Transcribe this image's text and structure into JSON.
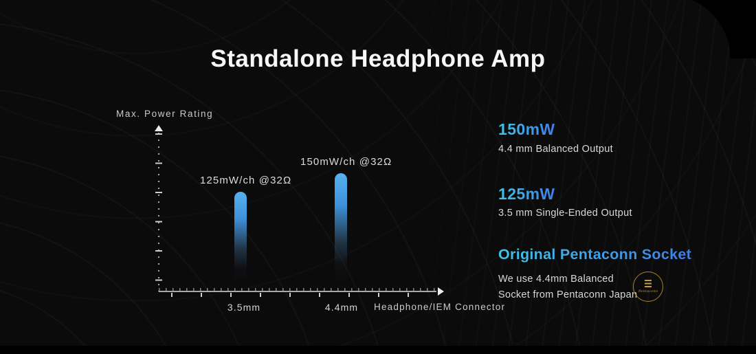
{
  "title": "Standalone Headphone Amp",
  "chart_data": {
    "type": "bar",
    "title": "",
    "ylabel": "Max. Power Rating",
    "xlabel": "Headphone/IEM Connector",
    "categories": [
      "3.5mm",
      "4.4mm"
    ],
    "values": [
      125,
      150
    ],
    "value_unit": "mW/ch @32Ω",
    "ylim": [
      0,
      175
    ],
    "grid": false,
    "legend": "none",
    "bars": [
      {
        "category": "3.5mm",
        "value": 125,
        "label": "125mW/ch @32Ω"
      },
      {
        "category": "4.4mm",
        "value": 150,
        "label": "150mW/ch @32Ω"
      }
    ]
  },
  "specs": [
    {
      "value": "150mW",
      "description": "4.4 mm Balanced Output"
    },
    {
      "value": "125mW",
      "description": "3.5 mm Single-Ended Output"
    }
  ],
  "feature": {
    "heading": "Original Pentaconn Socket",
    "body_line1": "We use 4.4mm Balanced",
    "body_line2": "Socket from Pentaconn Japan"
  },
  "logo": {
    "text": "Pentaconn"
  },
  "colors": {
    "background": "#0b0b0c",
    "accent_gradient_start": "#41c4e8",
    "accent_gradient_end": "#3f7ee4",
    "bar_blue": "#479fe3",
    "gold": "#b08d3a",
    "text_primary": "#f7f7f7",
    "text_secondary": "#d9d9d9"
  }
}
